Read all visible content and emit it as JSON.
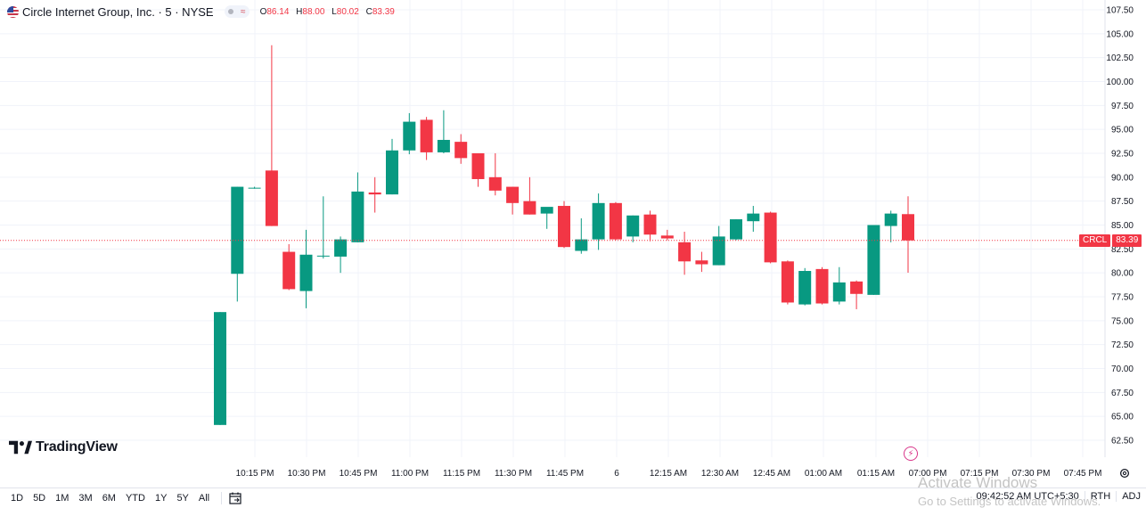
{
  "header": {
    "title": "Circle Internet Group, Inc. · 5 · NYSE",
    "pill_glyph": "≈",
    "ohlc": [
      {
        "k": "O",
        "v": "86.14"
      },
      {
        "k": "H",
        "v": "88.00"
      },
      {
        "k": "L",
        "v": "80.02"
      },
      {
        "k": "C",
        "v": "83.39"
      }
    ]
  },
  "logo": {
    "text": "TradingView"
  },
  "last_price": {
    "symbol": "CRCL",
    "value": "83.39"
  },
  "bottom": {
    "ranges": [
      "1D",
      "5D",
      "1M",
      "3M",
      "6M",
      "YTD",
      "1Y",
      "5Y",
      "All"
    ],
    "time": "09:42:52 AM UTC+5:30",
    "session": "RTH",
    "adj": "ADJ"
  },
  "watermark": {
    "title": "Activate Windows",
    "sub": "Go to Settings to activate Windows."
  },
  "icons": {
    "settings": "gear-icon",
    "calendar": "calendar-goto-icon",
    "lightning": "lightning-icon",
    "flag": "us-flag-icon"
  },
  "colors": {
    "up": "#089981",
    "down": "#f23645",
    "grid": "#f0f3fa",
    "price_line": "#f23645"
  },
  "chart_data": {
    "type": "candlestick",
    "y_ticks": [
      "62.50",
      "65.00",
      "67.50",
      "70.00",
      "72.50",
      "75.00",
      "77.50",
      "80.00",
      "82.50",
      "85.00",
      "87.50",
      "90.00",
      "92.50",
      "95.00",
      "97.50",
      "100.00",
      "102.50",
      "105.00",
      "107.50"
    ],
    "ylim": [
      61.2,
      108.2
    ],
    "x_ticks": [
      "10:15 PM",
      "10:30 PM",
      "10:45 PM",
      "11:00 PM",
      "11:15 PM",
      "11:30 PM",
      "11:45 PM",
      "6",
      "12:15 AM",
      "12:30 AM",
      "12:45 AM",
      "01:00 AM",
      "01:15 AM",
      "07:00 PM",
      "07:15 PM",
      "07:30 PM",
      "07:45 PM"
    ],
    "candles": [
      {
        "o": 64.1,
        "h": 75.9,
        "l": 64.1,
        "c": 75.9
      },
      {
        "o": 79.9,
        "h": 89.0,
        "l": 77.0,
        "c": 89.0
      },
      {
        "o": 88.9,
        "h": 89.0,
        "l": 88.8,
        "c": 88.9
      },
      {
        "o": 90.7,
        "h": 103.8,
        "l": 84.9,
        "c": 84.9
      },
      {
        "o": 82.2,
        "h": 83.0,
        "l": 78.2,
        "c": 78.3
      },
      {
        "o": 78.1,
        "h": 84.5,
        "l": 76.3,
        "c": 81.9
      },
      {
        "o": 81.8,
        "h": 88.0,
        "l": 81.5,
        "c": 81.8
      },
      {
        "o": 81.7,
        "h": 83.8,
        "l": 80.0,
        "c": 83.5
      },
      {
        "o": 83.2,
        "h": 90.5,
        "l": 83.2,
        "c": 88.5
      },
      {
        "o": 88.4,
        "h": 90.0,
        "l": 86.3,
        "c": 88.2
      },
      {
        "o": 88.2,
        "h": 94.0,
        "l": 88.2,
        "c": 92.8
      },
      {
        "o": 92.8,
        "h": 96.7,
        "l": 92.4,
        "c": 95.8
      },
      {
        "o": 96.0,
        "h": 96.3,
        "l": 91.8,
        "c": 92.6
      },
      {
        "o": 92.6,
        "h": 97.0,
        "l": 92.5,
        "c": 93.9
      },
      {
        "o": 93.7,
        "h": 94.5,
        "l": 91.4,
        "c": 92.0
      },
      {
        "o": 92.5,
        "h": 92.5,
        "l": 89.0,
        "c": 89.8
      },
      {
        "o": 90.0,
        "h": 92.5,
        "l": 88.1,
        "c": 88.6
      },
      {
        "o": 89.0,
        "h": 89.0,
        "l": 86.1,
        "c": 87.3
      },
      {
        "o": 87.5,
        "h": 90.0,
        "l": 86.1,
        "c": 86.1
      },
      {
        "o": 86.2,
        "h": 86.5,
        "l": 84.6,
        "c": 86.9
      },
      {
        "o": 87.0,
        "h": 87.5,
        "l": 82.6,
        "c": 82.7
      },
      {
        "o": 82.3,
        "h": 85.7,
        "l": 82.0,
        "c": 83.5
      },
      {
        "o": 83.5,
        "h": 88.3,
        "l": 82.4,
        "c": 87.3
      },
      {
        "o": 87.3,
        "h": 87.4,
        "l": 83.4,
        "c": 83.5
      },
      {
        "o": 83.8,
        "h": 86.0,
        "l": 83.2,
        "c": 86.0
      },
      {
        "o": 86.1,
        "h": 86.5,
        "l": 83.3,
        "c": 84.0
      },
      {
        "o": 83.9,
        "h": 84.5,
        "l": 83.4,
        "c": 83.6
      },
      {
        "o": 83.2,
        "h": 84.3,
        "l": 79.8,
        "c": 81.2
      },
      {
        "o": 81.3,
        "h": 82.2,
        "l": 80.1,
        "c": 80.9
      },
      {
        "o": 80.8,
        "h": 84.9,
        "l": 80.8,
        "c": 83.8
      },
      {
        "o": 83.5,
        "h": 85.6,
        "l": 83.4,
        "c": 85.6
      },
      {
        "o": 85.4,
        "h": 87.0,
        "l": 84.3,
        "c": 86.2
      },
      {
        "o": 86.3,
        "h": 86.4,
        "l": 81.0,
        "c": 81.1
      },
      {
        "o": 81.2,
        "h": 81.3,
        "l": 76.7,
        "c": 76.9
      },
      {
        "o": 76.7,
        "h": 80.5,
        "l": 76.6,
        "c": 80.2
      },
      {
        "o": 80.4,
        "h": 80.6,
        "l": 76.7,
        "c": 76.8
      },
      {
        "o": 77.0,
        "h": 80.6,
        "l": 76.7,
        "c": 79.0
      },
      {
        "o": 79.1,
        "h": 79.2,
        "l": 76.2,
        "c": 77.8
      },
      {
        "o": 77.7,
        "h": 85.0,
        "l": 77.7,
        "c": 85.0
      },
      {
        "o": 84.9,
        "h": 86.5,
        "l": 83.2,
        "c": 86.2
      },
      {
        "o": 86.14,
        "h": 88.0,
        "l": 80.02,
        "c": 83.39
      }
    ]
  }
}
